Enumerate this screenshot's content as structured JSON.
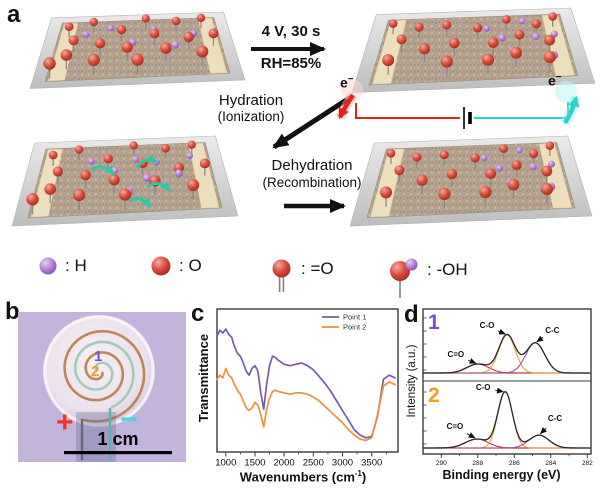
{
  "figure": {
    "panel_labels": {
      "a": "a",
      "b": "b",
      "c": "c",
      "d": "d"
    }
  },
  "panel_a": {
    "step1_condition_top": "4 V, 30 s",
    "step1_condition_bottom": "RH=85%",
    "hydration_label": "Hydration",
    "hydration_sub": "(Ionization)",
    "dehydration_label": "Dehydration",
    "dehydration_sub": "(Recombination)",
    "electron_label_base": "e",
    "electron_label_sup": "−",
    "legend_items": [
      {
        "icon": "hydrogen-ball",
        "label": ": H"
      },
      {
        "icon": "oxygen-ball",
        "label": ": O"
      },
      {
        "icon": "double-bond-oxygen",
        "label": ": =O"
      },
      {
        "icon": "hydroxyl-group",
        "label": ": -OH"
      }
    ],
    "colors": {
      "oxygen": "#d84b3c",
      "hydrogen": "#b07cd6",
      "wire_positive": "#e8231c",
      "wire_negative": "#2fd0cd",
      "migration_arrow": "#2fc6a2",
      "paper": "#b2a28f",
      "electrode_strip": "#ecdfbe",
      "sheet": "#d6d6d6"
    },
    "slabs": [
      {
        "name": "initial",
        "molecules": [
          [
            0.07,
            0.25,
            "O"
          ],
          [
            0.12,
            0.52,
            "O"
          ],
          [
            0.1,
            0.8,
            "O"
          ],
          [
            0.02,
            0.95,
            "O"
          ],
          [
            0.22,
            0.18,
            "O"
          ],
          [
            0.28,
            0.6,
            "O"
          ],
          [
            0.26,
            0.92,
            "O"
          ],
          [
            0.4,
            0.35,
            "O"
          ],
          [
            0.44,
            0.7,
            "O"
          ],
          [
            0.5,
            0.95,
            "O"
          ],
          [
            0.55,
            0.15,
            "O"
          ],
          [
            0.6,
            0.45,
            "O"
          ],
          [
            0.66,
            0.75,
            "O"
          ],
          [
            0.74,
            0.22,
            "O"
          ],
          [
            0.8,
            0.55,
            "O"
          ],
          [
            0.86,
            0.85,
            "O"
          ],
          [
            0.9,
            0.18,
            "O"
          ],
          [
            0.95,
            0.5,
            "O"
          ],
          [
            0.18,
            0.32,
            "H"
          ],
          [
            0.33,
            0.22,
            "H"
          ],
          [
            0.47,
            0.5,
            "H"
          ],
          [
            0.6,
            0.28,
            "H"
          ],
          [
            0.72,
            0.58,
            "H"
          ],
          [
            0.84,
            0.38,
            "H"
          ]
        ],
        "arrows": []
      },
      {
        "name": "biased",
        "molecules": [
          [
            0.05,
            0.22,
            "O"
          ],
          [
            0.12,
            0.5,
            "O"
          ],
          [
            0.08,
            0.85,
            "O"
          ],
          [
            0.2,
            0.3,
            "O"
          ],
          [
            0.25,
            0.68,
            "O"
          ],
          [
            0.35,
            0.28,
            "O"
          ],
          [
            0.4,
            0.6,
            "O"
          ],
          [
            0.37,
            0.92,
            "O"
          ],
          [
            0.52,
            0.35,
            "O"
          ],
          [
            0.6,
            0.62,
            "O"
          ],
          [
            0.57,
            0.92,
            "O"
          ],
          [
            0.68,
            0.22,
            "O"
          ],
          [
            0.74,
            0.5,
            "O"
          ],
          [
            0.71,
            0.82,
            "O"
          ],
          [
            0.84,
            0.32,
            "O"
          ],
          [
            0.89,
            0.62,
            "O"
          ],
          [
            0.87,
            0.92,
            "O"
          ],
          [
            0.94,
            0.2,
            "O"
          ],
          [
            0.57,
            0.28,
            "H"
          ],
          [
            0.65,
            0.45,
            "H"
          ],
          [
            0.77,
            0.18,
            "H"
          ],
          [
            0.83,
            0.45,
            "H"
          ],
          [
            0.9,
            0.78,
            "H"
          ],
          [
            0.7,
            0.68,
            "H"
          ],
          [
            0.93,
            0.42,
            "H"
          ]
        ],
        "arrows": []
      },
      {
        "name": "hydrated",
        "molecules": [
          [
            0.07,
            0.25,
            "O"
          ],
          [
            0.12,
            0.52,
            "O"
          ],
          [
            0.1,
            0.8,
            "O"
          ],
          [
            0.02,
            0.95,
            "O"
          ],
          [
            0.22,
            0.18,
            "O"
          ],
          [
            0.28,
            0.6,
            "O"
          ],
          [
            0.26,
            0.92,
            "O"
          ],
          [
            0.4,
            0.35,
            "O"
          ],
          [
            0.44,
            0.7,
            "O"
          ],
          [
            0.5,
            0.95,
            "O"
          ],
          [
            0.55,
            0.15,
            "O"
          ],
          [
            0.6,
            0.45,
            "O"
          ],
          [
            0.66,
            0.75,
            "O"
          ],
          [
            0.74,
            0.22,
            "O"
          ],
          [
            0.8,
            0.55,
            "O"
          ],
          [
            0.86,
            0.85,
            "O"
          ],
          [
            0.9,
            0.18,
            "O"
          ],
          [
            0.95,
            0.5,
            "O"
          ],
          [
            0.3,
            0.3,
            "H"
          ],
          [
            0.44,
            0.46,
            "H"
          ],
          [
            0.56,
            0.3,
            "H"
          ],
          [
            0.62,
            0.6,
            "H"
          ],
          [
            0.52,
            0.8,
            "H"
          ],
          [
            0.68,
            0.36,
            "H"
          ],
          [
            0.8,
            0.55,
            "H"
          ],
          [
            0.88,
            0.28,
            "H"
          ]
        ],
        "arrows": [
          [
            0.31,
            0.33,
            0.43,
            0.41
          ],
          [
            0.57,
            0.32,
            0.68,
            0.26
          ],
          [
            0.63,
            0.62,
            0.74,
            0.69
          ],
          [
            0.53,
            0.82,
            0.63,
            0.92
          ]
        ]
      },
      {
        "name": "dehydrated",
        "molecules": [
          [
            0.05,
            0.22,
            "O"
          ],
          [
            0.12,
            0.5,
            "O"
          ],
          [
            0.08,
            0.85,
            "O"
          ],
          [
            0.2,
            0.3,
            "O"
          ],
          [
            0.25,
            0.68,
            "O"
          ],
          [
            0.35,
            0.28,
            "O"
          ],
          [
            0.4,
            0.6,
            "O"
          ],
          [
            0.37,
            0.92,
            "O"
          ],
          [
            0.52,
            0.35,
            "O"
          ],
          [
            0.6,
            0.62,
            "O"
          ],
          [
            0.57,
            0.92,
            "O"
          ],
          [
            0.68,
            0.22,
            "O"
          ],
          [
            0.74,
            0.5,
            "O"
          ],
          [
            0.71,
            0.82,
            "O"
          ],
          [
            0.84,
            0.32,
            "O"
          ],
          [
            0.89,
            0.62,
            "O"
          ],
          [
            0.87,
            0.92,
            "O"
          ],
          [
            0.94,
            0.2,
            "O"
          ],
          [
            0.57,
            0.28,
            "H"
          ],
          [
            0.65,
            0.45,
            "H"
          ],
          [
            0.77,
            0.18,
            "H"
          ],
          [
            0.83,
            0.45,
            "H"
          ],
          [
            0.9,
            0.78,
            "H"
          ],
          [
            0.7,
            0.68,
            "H"
          ],
          [
            0.93,
            0.42,
            "H"
          ]
        ],
        "arrows": []
      }
    ]
  },
  "panel_b": {
    "point1": "1",
    "point2": "2",
    "positive": "+",
    "negative": "−",
    "scale_label": "1 cm",
    "colors": {
      "background": "#c3b4dc",
      "point1": "#7a4fd4",
      "point2": "#f59a23",
      "positive": "#f23322",
      "negative": "#35dce0",
      "spiral_a": "#b5773f",
      "spiral_b": "#9ec9b9"
    }
  },
  "chart_data": [
    {
      "type": "line",
      "title": "",
      "xlabel_prefix": "Wavenumbers (cm",
      "xlabel_sup": "-1",
      "xlabel_suffix": ")",
      "ylabel": "Transmittance",
      "x_range": [
        850,
        3950
      ],
      "xticks": [
        1000,
        1500,
        2000,
        2500,
        3000,
        3500
      ],
      "xticks_minor": [
        1250,
        1750,
        2250,
        2750,
        3250,
        3750
      ],
      "legend_position": "top-right",
      "grid": false,
      "x": [
        850,
        900,
        950,
        1000,
        1050,
        1100,
        1150,
        1200,
        1250,
        1300,
        1350,
        1400,
        1450,
        1500,
        1550,
        1600,
        1650,
        1700,
        1750,
        1800,
        1850,
        1900,
        2000,
        2100,
        2200,
        2300,
        2400,
        2500,
        2600,
        2700,
        2800,
        2900,
        3000,
        3100,
        3200,
        3300,
        3400,
        3500,
        3600,
        3700,
        3800,
        3900
      ],
      "series": [
        {
          "name": "Point 1",
          "color": "#7a5ba3",
          "y": [
            0.84,
            0.88,
            0.86,
            0.89,
            0.85,
            0.83,
            0.76,
            0.71,
            0.69,
            0.64,
            0.58,
            0.55,
            0.6,
            0.62,
            0.58,
            0.42,
            0.3,
            0.48,
            0.62,
            0.69,
            0.68,
            0.66,
            0.63,
            0.62,
            0.63,
            0.64,
            0.62,
            0.59,
            0.54,
            0.49,
            0.43,
            0.36,
            0.29,
            0.22,
            0.15,
            0.11,
            0.09,
            0.1,
            0.25,
            0.52,
            0.55,
            0.53
          ]
        },
        {
          "name": "Point 2",
          "color": "#ef913c",
          "y": [
            0.52,
            0.55,
            0.53,
            0.6,
            0.55,
            0.53,
            0.48,
            0.44,
            0.41,
            0.36,
            0.31,
            0.29,
            0.31,
            0.35,
            0.33,
            0.26,
            0.17,
            0.3,
            0.38,
            0.43,
            0.44,
            0.43,
            0.42,
            0.41,
            0.42,
            0.42,
            0.41,
            0.39,
            0.36,
            0.32,
            0.28,
            0.24,
            0.2,
            0.15,
            0.11,
            0.08,
            0.07,
            0.09,
            0.26,
            0.47,
            0.5,
            0.48
          ]
        }
      ]
    },
    {
      "type": "line",
      "xlabel": "Binding energy (eV)",
      "ylabel": "Intensity (a.u.)",
      "x_range": [
        291,
        281.8
      ],
      "x_axis_reversed": true,
      "xticks": [
        290,
        288,
        286,
        284,
        282
      ],
      "xticks_minor": [
        289,
        287,
        285,
        283
      ],
      "grid": false,
      "spectra": [
        {
          "label": "1",
          "label_color": "#7a4fd4",
          "envelope_color": "#2a2a2a",
          "baseline_color": "#cc3333",
          "peaks": [
            {
              "name": "C=O",
              "center": 288.0,
              "amplitude": 0.16,
              "sigma": 0.6,
              "color": "#cc3333"
            },
            {
              "name": "C-O",
              "center": 286.4,
              "amplitude": 0.68,
              "sigma": 0.45,
              "color": "#f09a3e"
            },
            {
              "name": "C-C",
              "center": 284.85,
              "amplitude": 0.54,
              "sigma": 0.52,
              "color": "#9b59a5"
            }
          ]
        },
        {
          "label": "2",
          "label_color": "#f59a23",
          "envelope_color": "#2a2a2a",
          "baseline_color": "#cc3333",
          "peaks": [
            {
              "name": "C=O",
              "center": 288.05,
              "amplitude": 0.16,
              "sigma": 0.62,
              "color": "#cc3333"
            },
            {
              "name": "C-O",
              "center": 286.5,
              "amplitude": 1.0,
              "sigma": 0.4,
              "color": "#f09a3e"
            },
            {
              "name": "C-C",
              "center": 284.65,
              "amplitude": 0.23,
              "sigma": 0.55,
              "color": "#9b59a5"
            }
          ]
        }
      ]
    }
  ]
}
